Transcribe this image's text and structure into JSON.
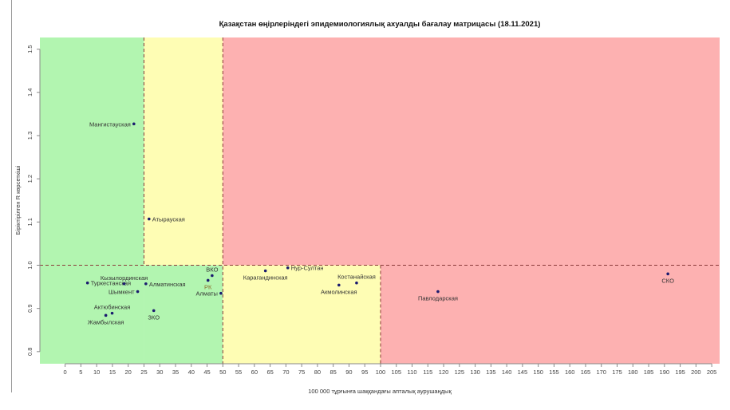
{
  "chart_data": {
    "type": "scatter",
    "title": "Қазақстан өңірлеріндегі эпидемиологиялық ахуалды бағалау матрицасы  (18.11.2021)",
    "xlabel": "100 000 тұрғынға шаққандағы апталық аурушаңдық",
    "ylabel": "Біріктірілген R көрсеткіші",
    "xlim": [
      -8,
      207.5
    ],
    "ylim": [
      0.772,
      1.527
    ],
    "x_ticks": [
      0,
      5,
      10,
      15,
      20,
      25,
      30,
      35,
      40,
      45,
      50,
      55,
      60,
      65,
      70,
      75,
      80,
      85,
      90,
      95,
      100,
      105,
      110,
      115,
      120,
      125,
      130,
      135,
      140,
      145,
      150,
      155,
      160,
      165,
      170,
      175,
      180,
      185,
      190,
      195,
      200,
      205
    ],
    "y_ticks": [
      0.8,
      0.9,
      1.0,
      1.1,
      1.2,
      1.3,
      1.4,
      1.5
    ],
    "y_tick_labels": [
      "0.8",
      "0.9",
      "1.0",
      "1.1",
      "1.2",
      "1.3",
      "1.4",
      "1.5"
    ],
    "grid": false,
    "thresholds": {
      "x": [
        25,
        50,
        100
      ],
      "y": 1.0
    },
    "zone_colors": {
      "green": "#b2f5b0",
      "yellow": "#fefdb4",
      "red": "#fdb1b1"
    },
    "threshold_line_color": "#8b3a3a",
    "point_color": "#1a1a6e",
    "points": [
      {
        "name": "Мангистауская",
        "x": 21.8,
        "y": 1.327
      },
      {
        "name": "Атырауская",
        "x": 26.6,
        "y": 1.107
      },
      {
        "name": "Туркестанская",
        "x": 7.1,
        "y": 0.959
      },
      {
        "name": "Кызылординская",
        "x": 18.7,
        "y": 0.957
      },
      {
        "name": "Алматинская",
        "x": 25.6,
        "y": 0.957
      },
      {
        "name": "Шымкент",
        "x": 23.0,
        "y": 0.939
      },
      {
        "name": "Актюбинская",
        "x": 14.9,
        "y": 0.889
      },
      {
        "name": "Жамбылская",
        "x": 12.9,
        "y": 0.884
      },
      {
        "name": "ЗКО",
        "x": 28.1,
        "y": 0.895
      },
      {
        "name": "ВКО",
        "x": 46.6,
        "y": 0.976
      },
      {
        "name": "РК",
        "x": 45.3,
        "y": 0.965,
        "color": "#8b6b2a"
      },
      {
        "name": "Алматы",
        "x": 49.4,
        "y": 0.935
      },
      {
        "name": "Карагандинская",
        "x": 63.5,
        "y": 0.987
      },
      {
        "name": "Нур-Султан",
        "x": 70.6,
        "y": 0.994
      },
      {
        "name": "Костанайская",
        "x": 92.4,
        "y": 0.959
      },
      {
        "name": "Акмолинская",
        "x": 86.8,
        "y": 0.954
      },
      {
        "name": "Павлодарская",
        "x": 118.2,
        "y": 0.939
      },
      {
        "name": "СКО",
        "x": 191.1,
        "y": 0.98
      }
    ]
  }
}
